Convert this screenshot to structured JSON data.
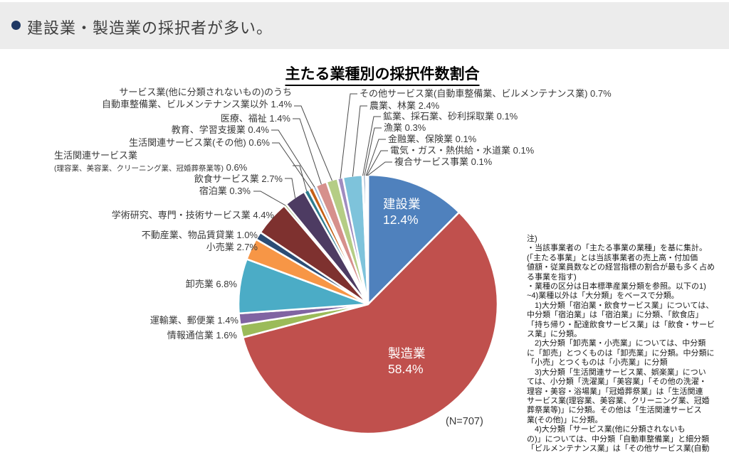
{
  "header": {
    "title": "建設業・製造業の採択者が多い。"
  },
  "chart_data": {
    "type": "pie",
    "title": "主たる業種別の採択件数割合",
    "unit": "%",
    "n": 707,
    "n_label": "(N=707)",
    "legend_position": "callout-labels",
    "slices": [
      {
        "name": "建設業",
        "value": 12.4,
        "color": "#4F81BD",
        "inside_label": "建設業\n12.4%"
      },
      {
        "name": "製造業",
        "value": 58.4,
        "color": "#C0504D",
        "inside_label": "製造業\n58.4%"
      },
      {
        "name": "情報通信業",
        "value": 1.6,
        "color": "#9BBB59",
        "callout": "情報通信業 1.6%"
      },
      {
        "name": "運輸業、郵便業",
        "value": 1.4,
        "color": "#8064A2",
        "callout": "運輸業、郵便業 1.4%"
      },
      {
        "name": "卸売業",
        "value": 6.8,
        "color": "#4BACC6",
        "callout": "卸売業 6.8%"
      },
      {
        "name": "小売業",
        "value": 2.7,
        "color": "#F79646",
        "callout": "小売業 2.7%"
      },
      {
        "name": "不動産業、物品賃貸業",
        "value": 1.0,
        "color": "#2C4D75",
        "callout": "不動産業、物品賃貸業 1.0%"
      },
      {
        "name": "学術研究、専門・技術サービス業",
        "value": 4.4,
        "color": "#7E312F",
        "callout": "学術研究、専門・技術サービス業 4.4%"
      },
      {
        "name": "宿泊業",
        "value": 0.3,
        "color": "#77933C",
        "callout": "宿泊業 0.3%"
      },
      {
        "name": "飲食サービス業",
        "value": 2.7,
        "color": "#4D3B62",
        "callout": "飲食サービス業 2.7%"
      },
      {
        "name": "生活関連サービス業(理容業、美容業、クリーニング業、冠婚葬祭業等)",
        "value": 0.6,
        "color": "#2E7D8F",
        "callout": "生活関連サービス業",
        "callout_sub": "(理容業、美容業、クリーニング業、冠婚葬祭業等)",
        "callout_pct": " 0.6%"
      },
      {
        "name": "生活関連サービス業(その他)",
        "value": 0.6,
        "color": "#C55F16",
        "callout": "生活関連サービス業(その他) 0.6%"
      },
      {
        "name": "教育、学習支援業",
        "value": 0.4,
        "color": "#95B3D7",
        "callout": "教育、学習支援業 0.4%"
      },
      {
        "name": "医療、福祉",
        "value": 1.4,
        "color": "#D6908C",
        "callout": "医療、福祉 1.4%"
      },
      {
        "name": "サービス業(他に分類されないもの)のうち自動車整備業、ビルメンテナンス業以外",
        "value": 1.4,
        "color": "#B5CD85",
        "callout": "サービス業(他に分類されないもの)のうち\n自動車整備業、ビルメンテナンス業以外 1.4%"
      },
      {
        "name": "その他サービス業(自動車整備業、ビルメンテナンス業)",
        "value": 0.7,
        "color": "#A08CC0",
        "callout": "その他サービス業(自動車整備業、ビルメンテナンス業) 0.7%"
      },
      {
        "name": "農業、林業",
        "value": 2.4,
        "color": "#7EC3DB",
        "callout": "農業、林業 2.4%"
      },
      {
        "name": "鉱業、採石業、砂利採取業",
        "value": 0.1,
        "color": "#FAC08F",
        "callout": "鉱業、採石業、砂利採取業 0.1%"
      },
      {
        "name": "漁業",
        "value": 0.3,
        "color": "#3A679C",
        "callout": "漁業 0.3%"
      },
      {
        "name": "金融業、保険業",
        "value": 0.1,
        "color": "#9E413E",
        "callout": "金融業、保険業 0.1%"
      },
      {
        "name": "電気・ガス・熱供給・水道業",
        "value": 0.1,
        "color": "#7E9A48",
        "callout": "電気・ガス・熱供給・水道業 0.1%"
      },
      {
        "name": "複合サービス事業",
        "value": 0.1,
        "color": "#604A7B",
        "callout": "複合サービス事業 0.1%"
      }
    ]
  },
  "notes": {
    "text": "注)\n・当該事業者の「主たる事業の業種」を基に集計。\n(「主たる事業」とは当該事業者の売上高・付加価\n値額・従業員数などの経営指標の割合が最も多く占め\nる事業を指す)\n・業種の区分は日本標準産業分類を参照。以下の1)\n~4)業種以外は「大分類」をベースで分類。\n　1)大分類「宿泊業・飲食サービス業」については、\n中分類「宿泊業」は「宿泊業」に分類、「飲食店」\n「持ち帰り・配達飲食サービス業」は「飲食・サービ\nス業」に分類。\n　2)大分類「卸売業・小売業」については、中分類\nに「卸売」とつくものは「卸売業」に分類。中分類に\n「小売」とつくものは「小売業」に分類\n　3)大分類「生活関連サービス業、娯楽業」につい\nては、小分類「洗濯業」「美容業」「その他の洗濯・\n理容・美容・浴場業」「冠婚葬祭業」は「生活関連\nサービス業(理容業、美容業、クリーニング業、冠婚\n葬祭業等)」に分類。その他は「生活関連サービス\n業(その他)」に分類。\n　4)大分類「サービス業(他に分類されないも\nの)」については、中分類「自動車整備業」と細分類\n「ビルメンテナンス業」は「その他サービス業(自動"
  }
}
